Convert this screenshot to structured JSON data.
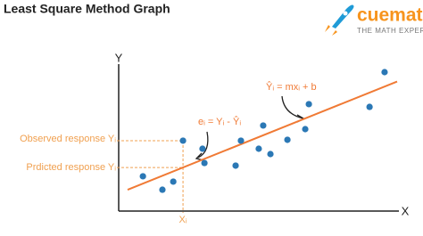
{
  "chart_data": {
    "type": "scatter",
    "title": "Least Square Method Graph",
    "xlabel": "X",
    "ylabel": "Y",
    "xlim": [
      0,
      100
    ],
    "ylim": [
      0,
      100
    ],
    "x": [
      8.7,
      15.7,
      19.6,
      23.1,
      30.1,
      30.8,
      42.0,
      43.9,
      50.3,
      51.9,
      54.5,
      60.6,
      67.0,
      68.3,
      90.1,
      95.5
    ],
    "values": [
      24.1,
      14.8,
      20.4,
      48.8,
      43.2,
      33.3,
      31.5,
      48.8,
      43.2,
      59.3,
      39.5,
      49.4,
      56.8,
      74.1,
      72.2,
      96.3
    ],
    "color": "#2b78b5",
    "fit_line": {
      "x": [
        3.2,
        100
      ],
      "y": [
        14.8,
        89.8
      ],
      "color": "#f07a35",
      "label": "Ŷᵢ = mxᵢ + b"
    },
    "reference": {
      "x": 23.1,
      "observed_y": 48.8,
      "predicted_y": 30.2,
      "observed_label": "Observed response Yᵢ",
      "predicted_label": "Prdicted response Yᵢ",
      "x_label": "Xᵢ",
      "error_label": "eᵢ = Yᵢ - Ŷᵢ",
      "color": "#f0a050"
    }
  },
  "logo": {
    "name": "cuemath",
    "tagline": "THE MATH EXPERT"
  }
}
